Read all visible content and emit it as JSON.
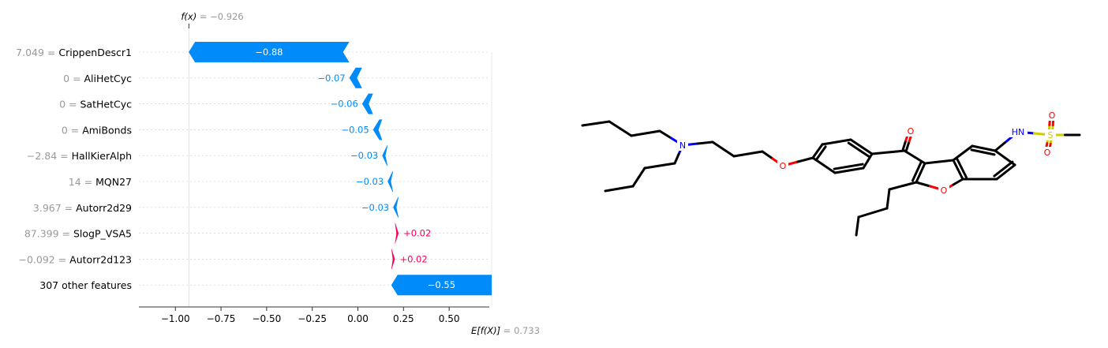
{
  "chart_data": {
    "type": "waterfall",
    "fx_label": "f(x)",
    "fx_value": "−0.926",
    "expected_label": "E[f(X)]",
    "expected_value": "0.733",
    "base_value": 0.733,
    "final_value": -0.926,
    "xlim": [
      -1.2,
      0.72
    ],
    "xticks": [
      {
        "v": -1.0,
        "label": "−1.00"
      },
      {
        "v": -0.75,
        "label": "−0.75"
      },
      {
        "v": -0.5,
        "label": "−0.50"
      },
      {
        "v": -0.25,
        "label": "−0.25"
      },
      {
        "v": 0.0,
        "label": "0.00"
      },
      {
        "v": 0.25,
        "label": "0.25"
      },
      {
        "v": 0.5,
        "label": "0.50"
      }
    ],
    "features": [
      {
        "value_text": "7.049",
        "name": "CrippenDescr1",
        "shap": -0.88,
        "label": "−0.88"
      },
      {
        "value_text": "0",
        "name": "AliHetCyc",
        "shap": -0.07,
        "label": "−0.07"
      },
      {
        "value_text": "0",
        "name": "SatHetCyc",
        "shap": -0.06,
        "label": "−0.06"
      },
      {
        "value_text": "0",
        "name": "AmiBonds",
        "shap": -0.05,
        "label": "−0.05"
      },
      {
        "value_text": "−2.84",
        "name": "HallKierAlph",
        "shap": -0.03,
        "label": "−0.03"
      },
      {
        "value_text": "14",
        "name": "MQN27",
        "shap": -0.03,
        "label": "−0.03"
      },
      {
        "value_text": "3.967",
        "name": "Autorr2d29",
        "shap": -0.03,
        "label": "−0.03"
      },
      {
        "value_text": "87.399",
        "name": "SlogP_VSA5",
        "shap": 0.02,
        "label": "+0.02"
      },
      {
        "value_text": "−0.092",
        "name": "Autorr2d123",
        "shap": 0.02,
        "label": "+0.02"
      },
      {
        "value_text": "",
        "name": "307 other features",
        "shap": -0.55,
        "label": "−0.55"
      }
    ],
    "colors": {
      "negative": "#008bfb",
      "positive": "#ff0051",
      "muted": "#999999",
      "text": "#000000"
    }
  },
  "molecule": {
    "atom_labels": {
      "oxygen": "O",
      "nitrogen": "N",
      "amide": "HN",
      "sulfur": "S"
    },
    "colors": {
      "bond": "#000000",
      "oxygen": "#ff0000",
      "nitrogen": "#0000ff",
      "sulfur": "#cccc00"
    }
  }
}
